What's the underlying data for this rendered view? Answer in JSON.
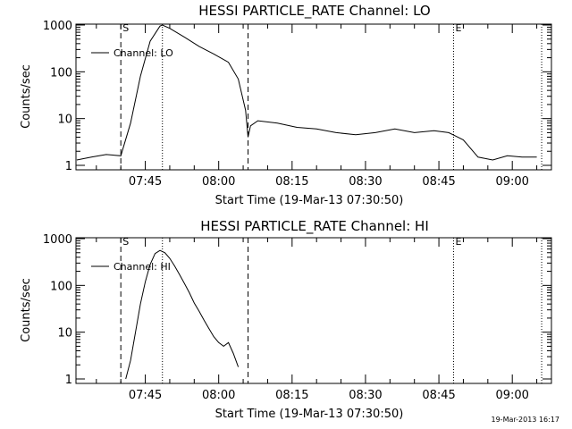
{
  "footer": {
    "stamp": "19-Mar-2013 16:17"
  },
  "chart_data": [
    {
      "type": "line",
      "title": "HESSI PARTICLE_RATE Channel: LO",
      "xlabel": "Start Time (19-Mar-13 07:30:50)",
      "ylabel": "Counts/sec",
      "yscale": "log",
      "xlim": [
        "07:30:50",
        "09:08:00"
      ],
      "ylim": [
        1,
        1000
      ],
      "xticks": [
        "07:45",
        "08:00",
        "08:15",
        "08:30",
        "08:45",
        "09:00"
      ],
      "yticks": [
        "1",
        "10",
        "100",
        "1000"
      ],
      "legend": "Channel: LO",
      "markers": [
        {
          "label": "S",
          "time": "07:40:00",
          "style": "dashed"
        },
        {
          "label": "",
          "time": "07:48:30",
          "style": "dotted"
        },
        {
          "label": "",
          "time": "08:06:00",
          "style": "dashed"
        },
        {
          "label": "E",
          "time": "08:48:00",
          "style": "dotted"
        },
        {
          "label": "",
          "time": "09:06:00",
          "style": "dotted"
        }
      ],
      "series": [
        {
          "x": [
            "07:31:00",
            "07:34:00",
            "07:37:00",
            "07:40:00",
            "07:42:00",
            "07:44:00",
            "07:46:00",
            "07:48:00",
            "07:48:30",
            "07:50:00",
            "07:53:00",
            "07:56:00",
            "07:59:00",
            "08:02:00",
            "08:04:00",
            "08:05:30",
            "08:06:00",
            "08:06:30",
            "08:08:00",
            "08:12:00",
            "08:16:00",
            "08:20:00",
            "08:24:00",
            "08:28:00",
            "08:32:00",
            "08:36:00",
            "08:40:00",
            "08:44:00",
            "08:47:00",
            "08:50:00",
            "08:53:00",
            "08:56:00",
            "08:59:00",
            "09:02:00",
            "09:05:00"
          ],
          "values": [
            1.3,
            1.5,
            1.7,
            1.6,
            8,
            80,
            450,
            950,
            1000,
            850,
            550,
            350,
            240,
            160,
            70,
            15,
            4,
            7,
            9,
            8,
            6.5,
            6,
            5,
            4.5,
            5,
            6,
            5,
            5.5,
            5,
            3.5,
            1.5,
            1.3,
            1.6,
            1.5,
            1.5
          ]
        }
      ]
    },
    {
      "type": "line",
      "title": "HESSI PARTICLE_RATE Channel: HI",
      "xlabel": "Start Time (19-Mar-13 07:30:50)",
      "ylabel": "Counts/sec",
      "yscale": "log",
      "xlim": [
        "07:30:50",
        "09:08:00"
      ],
      "ylim": [
        1,
        1000
      ],
      "xticks": [
        "07:45",
        "08:00",
        "08:15",
        "08:30",
        "08:45",
        "09:00"
      ],
      "yticks": [
        "1",
        "10",
        "100",
        "1000"
      ],
      "legend": "Channel: HI",
      "markers": [
        {
          "label": "S",
          "time": "07:40:00",
          "style": "dashed"
        },
        {
          "label": "",
          "time": "07:48:30",
          "style": "dotted"
        },
        {
          "label": "",
          "time": "08:06:00",
          "style": "dashed"
        },
        {
          "label": "E",
          "time": "08:48:00",
          "style": "dotted"
        },
        {
          "label": "",
          "time": "09:06:00",
          "style": "dotted"
        }
      ],
      "series": [
        {
          "x": [
            "07:41:00",
            "07:42:00",
            "07:43:00",
            "07:44:00",
            "07:45:00",
            "07:46:00",
            "07:47:00",
            "07:48:00",
            "07:49:00",
            "07:50:00",
            "07:51:00",
            "07:52:00",
            "07:53:00",
            "07:54:00",
            "07:55:00",
            "07:56:00",
            "07:57:00",
            "07:58:00",
            "07:59:00",
            "08:00:00",
            "08:01:00",
            "08:02:00",
            "08:03:00",
            "08:04:00"
          ],
          "values": [
            1,
            2.5,
            10,
            40,
            120,
            280,
            480,
            560,
            500,
            380,
            260,
            170,
            110,
            70,
            42,
            28,
            18,
            12,
            8,
            6,
            5,
            6,
            3.5,
            1.8
          ]
        }
      ]
    }
  ]
}
